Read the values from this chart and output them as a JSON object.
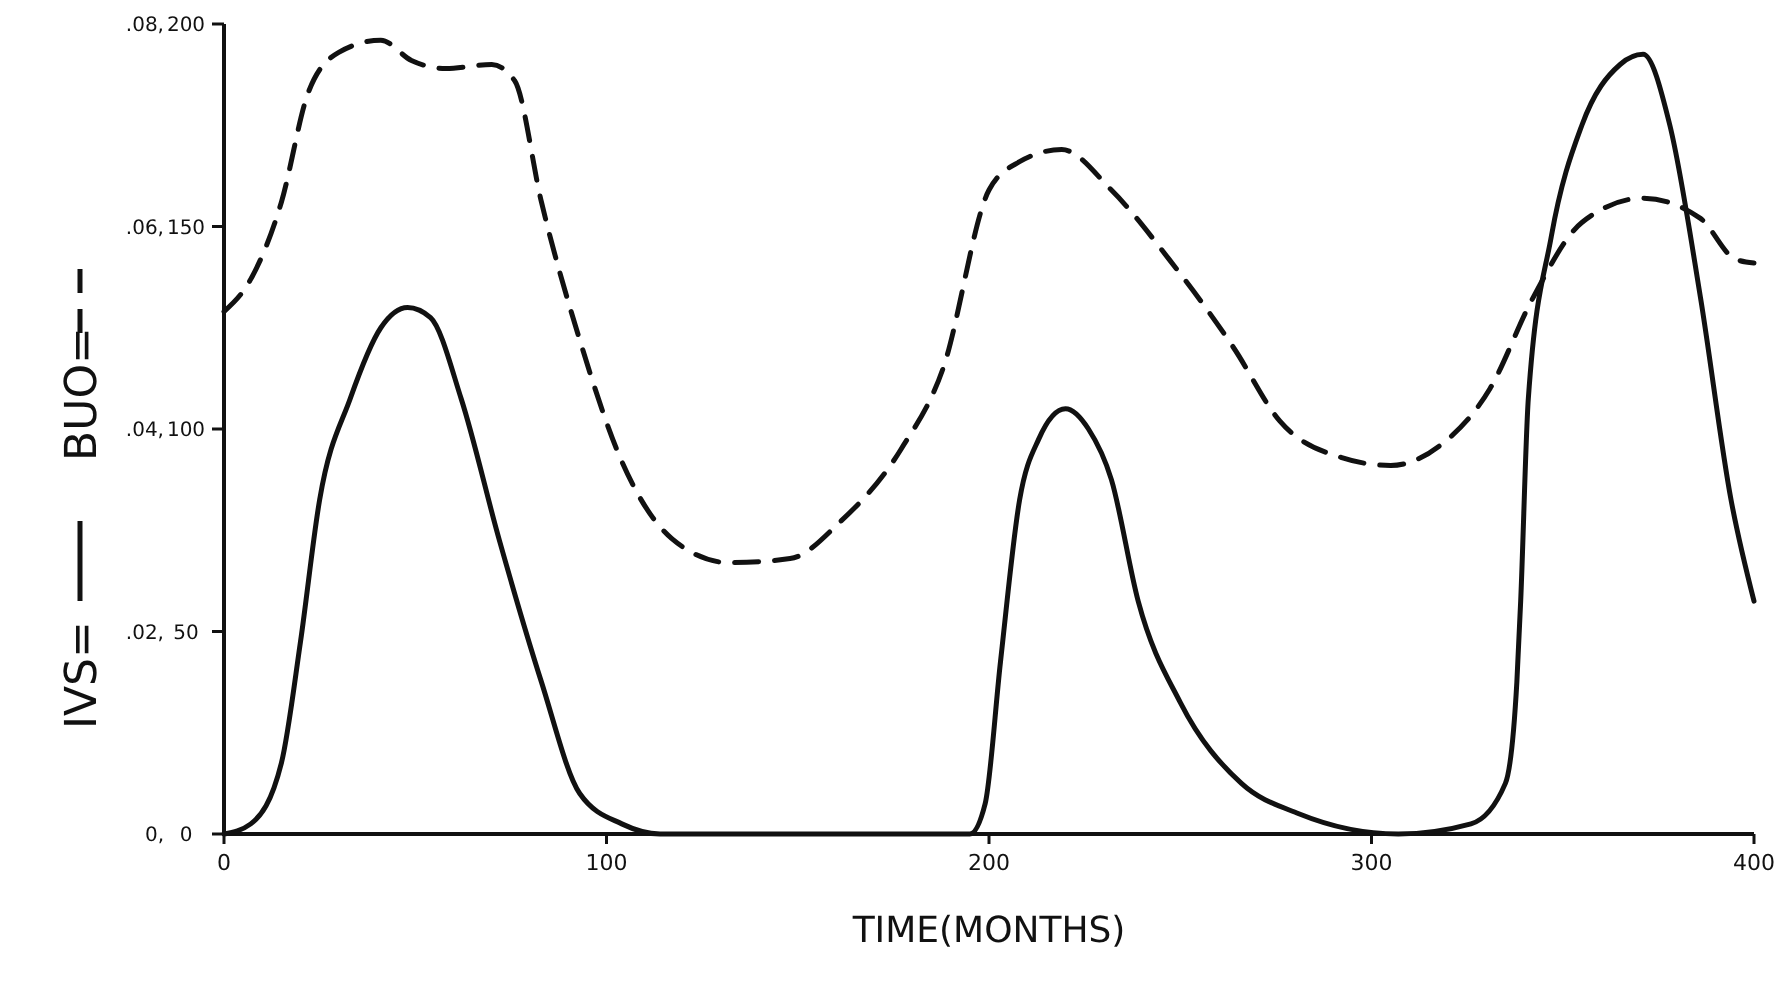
{
  "chart_data": {
    "type": "line",
    "xlabel": "TIME(MONTHS)",
    "xlim": [
      0,
      400
    ],
    "xticks": [
      0,
      100,
      200,
      300,
      400
    ],
    "ylim": [
      0,
      0.08
    ],
    "yticks": [
      {
        "value": 0,
        "label": "0,"
      },
      {
        "value": 0.02,
        "label": ".02,"
      },
      {
        "value": 0.04,
        "label": ".04,"
      },
      {
        "value": 0.06,
        "label": ".06,"
      },
      {
        "value": 0.08,
        "label": ".08,"
      }
    ],
    "y2lim": [
      0,
      200
    ],
    "y2ticks": [
      0,
      50,
      100,
      150,
      200
    ],
    "legend": "left",
    "series": [
      {
        "name": "IVS=",
        "color": "#111111",
        "line_style": "solid",
        "x": [
          0,
          7,
          15,
          20,
          25,
          33,
          41,
          48,
          54,
          62,
          72,
          83,
          93,
          104,
          114,
          150,
          195,
          199,
          203,
          208,
          213,
          220,
          226,
          232,
          239,
          250,
          266,
          281,
          307,
          326,
          335,
          338,
          339,
          341,
          347,
          355,
          365,
          371,
          378,
          386,
          394,
          400
        ],
        "values": [
          0,
          0.001,
          0.007,
          0.019,
          0.033,
          0.043,
          0.05,
          0.052,
          0.051,
          0.043,
          0.029,
          0.015,
          0.004,
          0.001,
          0,
          0,
          0,
          0.003,
          0.017,
          0.033,
          0.039,
          0.042,
          0.04,
          0.035,
          0.023,
          0.013,
          0.005,
          0.002,
          0,
          0.001,
          0.005,
          0.015,
          0.023,
          0.043,
          0.059,
          0.07,
          0.076,
          0.077,
          0.07,
          0.053,
          0.033,
          0.023
        ]
      },
      {
        "name": "BUO=",
        "color": "#111111",
        "line_style": "dashed",
        "axis": "y2",
        "x": [
          0,
          7,
          15,
          22,
          30,
          41,
          49,
          58,
          70,
          76,
          83,
          93,
          104,
          117,
          132,
          148,
          161,
          177,
          188,
          200,
          208,
          219,
          232,
          247,
          264,
          276,
          292,
          305,
          318,
          331,
          342,
          355,
          371,
          386,
          395,
          400
        ],
        "values": [
          129,
          137,
          156,
          183,
          193,
          196,
          191,
          189,
          190,
          186,
          156,
          122,
          92,
          73,
          67,
          68,
          77,
          95,
          115,
          159,
          166,
          169,
          159,
          142,
          120,
          102,
          93,
          91,
          96,
          110,
          132,
          151,
          157,
          152,
          142,
          141
        ]
      }
    ]
  }
}
